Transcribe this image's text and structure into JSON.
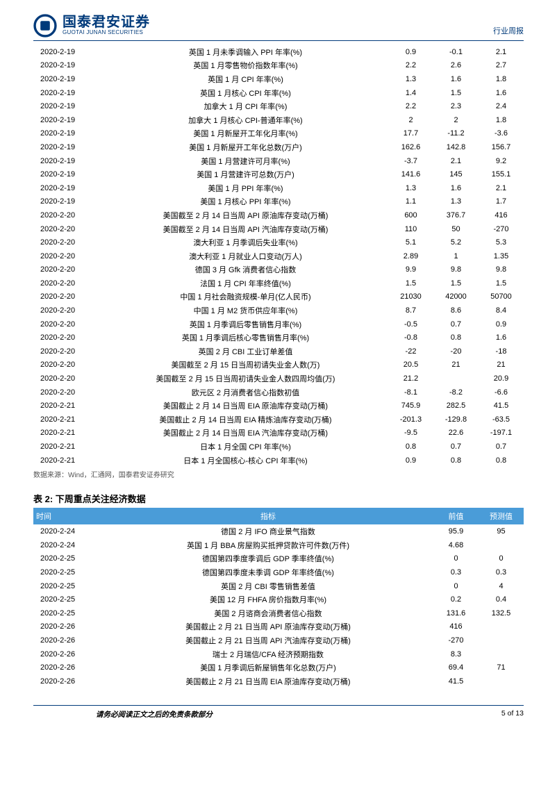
{
  "header": {
    "logo_cn": "国泰君安证券",
    "logo_en": "GUOTAI JUNAN SECURITIES",
    "right_label": "行业周报",
    "logo_color": "#003a7a"
  },
  "colors": {
    "header_border": "#003a7a",
    "t2_header_bg": "#4a9cd8",
    "t2_header_fg": "#ffffff",
    "source_fg": "#555555"
  },
  "table1": {
    "rows": [
      [
        "2020-2-19",
        "英国 1 月未季调输入 PPI 年率(%)",
        "0.9",
        "-0.1",
        "2.1"
      ],
      [
        "2020-2-19",
        "英国 1 月零售物价指数年率(%)",
        "2.2",
        "2.6",
        "2.7"
      ],
      [
        "2020-2-19",
        "英国 1 月 CPI 年率(%)",
        "1.3",
        "1.6",
        "1.8"
      ],
      [
        "2020-2-19",
        "英国 1 月核心 CPI 年率(%)",
        "1.4",
        "1.5",
        "1.6"
      ],
      [
        "2020-2-19",
        "加拿大 1 月 CPI 年率(%)",
        "2.2",
        "2.3",
        "2.4"
      ],
      [
        "2020-2-19",
        "加拿大 1 月核心 CPI-普通年率(%)",
        "2",
        "2",
        "1.8"
      ],
      [
        "2020-2-19",
        "美国 1 月新屋开工年化月率(%)",
        "17.7",
        "-11.2",
        "-3.6"
      ],
      [
        "2020-2-19",
        "美国 1 月新屋开工年化总数(万户)",
        "162.6",
        "142.8",
        "156.7"
      ],
      [
        "2020-2-19",
        "美国 1 月营建许可月率(%)",
        "-3.7",
        "2.1",
        "9.2"
      ],
      [
        "2020-2-19",
        "美国 1 月营建许可总数(万户)",
        "141.6",
        "145",
        "155.1"
      ],
      [
        "2020-2-19",
        "美国 1 月 PPI 年率(%)",
        "1.3",
        "1.6",
        "2.1"
      ],
      [
        "2020-2-19",
        "美国 1 月核心 PPI 年率(%)",
        "1.1",
        "1.3",
        "1.7"
      ],
      [
        "2020-2-20",
        "美国截至 2 月 14 日当周 API 原油库存变动(万桶)",
        "600",
        "376.7",
        "416"
      ],
      [
        "2020-2-20",
        "美国截至 2 月 14 日当周 API 汽油库存变动(万桶)",
        "110",
        "50",
        "-270"
      ],
      [
        "2020-2-20",
        "澳大利亚 1 月季调后失业率(%)",
        "5.1",
        "5.2",
        "5.3"
      ],
      [
        "2020-2-20",
        "澳大利亚 1 月就业人口变动(万人)",
        "2.89",
        "1",
        "1.35"
      ],
      [
        "2020-2-20",
        "德国 3 月 Gfk 消费者信心指数",
        "9.9",
        "9.8",
        "9.8"
      ],
      [
        "2020-2-20",
        "法国 1 月 CPI 年率终值(%)",
        "1.5",
        "1.5",
        "1.5"
      ],
      [
        "2020-2-20",
        "中国 1 月社会融资规模-单月(亿人民币)",
        "21030",
        "42000",
        "50700"
      ],
      [
        "2020-2-20",
        "中国 1 月 M2 货币供应年率(%)",
        "8.7",
        "8.6",
        "8.4"
      ],
      [
        "2020-2-20",
        "英国 1 月季调后零售销售月率(%)",
        "-0.5",
        "0.7",
        "0.9"
      ],
      [
        "2020-2-20",
        "英国 1 月季调后核心零售销售月率(%)",
        "-0.8",
        "0.8",
        "1.6"
      ],
      [
        "2020-2-20",
        "英国 2 月 CBI 工业订单差值",
        "-22",
        "-20",
        "-18"
      ],
      [
        "2020-2-20",
        "美国截至 2 月 15 日当周初请失业金人数(万)",
        "20.5",
        "21",
        "21"
      ],
      [
        "2020-2-20",
        "美国截至 2 月 15 日当周初请失业金人数四周均值(万)",
        "21.2",
        "",
        "20.9"
      ],
      [
        "2020-2-20",
        "欧元区 2 月消费者信心指数初值",
        "-8.1",
        "-8.2",
        "-6.6"
      ],
      [
        "2020-2-21",
        "美国截止 2 月 14 日当周 EIA 原油库存变动(万桶)",
        "745.9",
        "282.5",
        "41.5"
      ],
      [
        "2020-2-21",
        "美国截止 2 月 14 日当周 EIA 精炼油库存变动(万桶)",
        "-201.3",
        "-129.8",
        "-63.5"
      ],
      [
        "2020-2-21",
        "美国截止 2 月 14 日当周 EIA 汽油库存变动(万桶)",
        "-9.5",
        "22.6",
        "-197.1"
      ],
      [
        "2020-2-21",
        "日本 1 月全国 CPI 年率(%)",
        "0.8",
        "0.7",
        "0.7"
      ],
      [
        "2020-2-21",
        "日本 1 月全国核心-核心 CPI 年率(%)",
        "0.9",
        "0.8",
        "0.8"
      ]
    ]
  },
  "source_line": "数据来源：Wind，汇通网，国泰君安证券研究",
  "table2": {
    "caption": "表 2:  下周重点关注经济数据",
    "headers": [
      "时间",
      "指标",
      "前值",
      "预测值"
    ],
    "rows": [
      [
        "2020-2-24",
        "德国 2 月 IFO 商业景气指数",
        "95.9",
        "95"
      ],
      [
        "2020-2-24",
        "英国 1 月 BBA 房屋购买抵押贷款许可件数(万件)",
        "4.68",
        ""
      ],
      [
        "2020-2-25",
        "德国第四季度季调后 GDP 季率终值(%)",
        "0",
        "0"
      ],
      [
        "2020-2-25",
        "德国第四季度未季调 GDP 年率终值(%)",
        "0.3",
        "0.3"
      ],
      [
        "2020-2-25",
        "英国 2 月 CBI 零售销售差值",
        "0",
        "4"
      ],
      [
        "2020-2-25",
        "美国 12 月 FHFA 房价指数月率(%)",
        "0.2",
        "0.4"
      ],
      [
        "2020-2-25",
        "美国 2 月谘商会消费者信心指数",
        "131.6",
        "132.5"
      ],
      [
        "2020-2-26",
        "美国截止 2 月 21 日当周 API 原油库存变动(万桶)",
        "416",
        ""
      ],
      [
        "2020-2-26",
        "美国截止 2 月 21 日当周 API 汽油库存变动(万桶)",
        "-270",
        ""
      ],
      [
        "2020-2-26",
        "瑞士 2 月瑞信/CFA 经济预期指数",
        "8.3",
        ""
      ],
      [
        "2020-2-26",
        "美国 1 月季调后新屋销售年化总数(万户)",
        "69.4",
        "71"
      ],
      [
        "2020-2-26",
        "美国截止 2 月 21 日当周 EIA 原油库存变动(万桶)",
        "41.5",
        ""
      ]
    ]
  },
  "footer": {
    "disclaimer": "请务必阅读正文之后的免责条款部分",
    "page": "5 of 13"
  }
}
